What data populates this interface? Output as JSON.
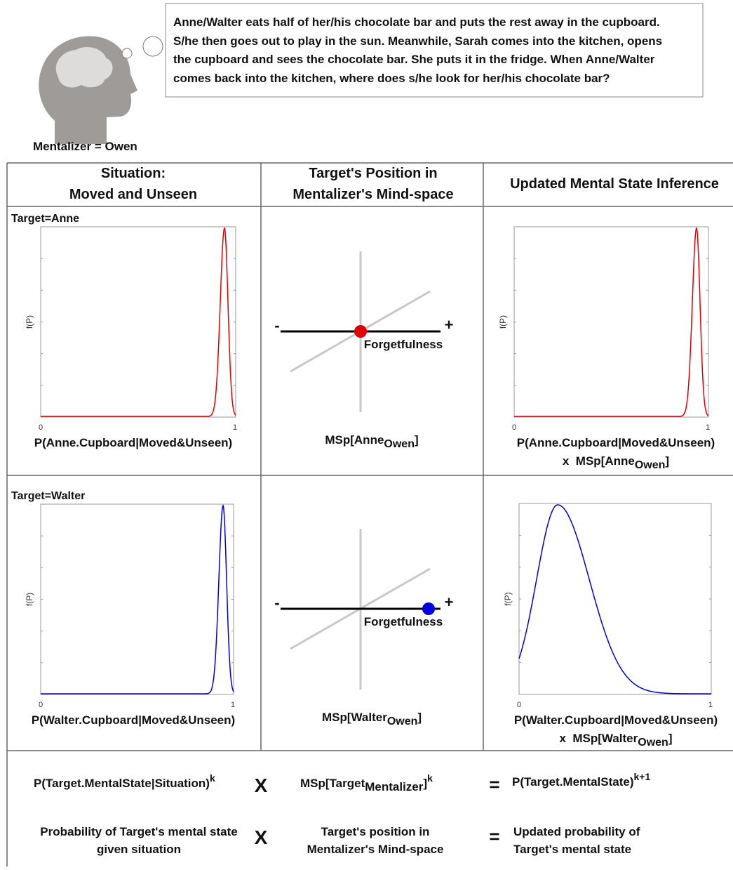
{
  "thought": {
    "story_lines": [
      "Anne/Walter eats half of her/his chocolate bar and puts the rest away in the cupboard.",
      "S/he then goes out to play in the sun. Meanwhile, Sarah comes into the kitchen, opens",
      "the cupboard and sees the chocolate bar. She puts it in the fridge. When Anne/Walter",
      "comes back into the kitchen, where does s/he look for her/his chocolate bar?"
    ],
    "mentalizer": "Mentalizer = Owen"
  },
  "table": {
    "headers": [
      [
        "Situation:",
        "Moved and Unseen"
      ],
      [
        "Target's Position in",
        "Mentalizer's Mind-space"
      ],
      [
        "Updated Mental State Inference"
      ]
    ],
    "rows": [
      {
        "target": "Target=Anne",
        "situation_plot": {
          "y_label": "f(P)",
          "x_ticks": [
            "0",
            "1"
          ],
          "x_label": "P(Anne.Cupboard|Moved&Unseen)"
        },
        "mind_space": {
          "minus": "-",
          "plus": "+",
          "axis": "Forgetfulness",
          "label": [
            "MSp[Anne",
            "Owen",
            "]"
          ]
        },
        "updated_plot": {
          "y_label": "f(P)",
          "x_ticks": [
            "0",
            "1"
          ],
          "x_label": "P(Anne.Cupboard|Moved&Unseen)",
          "x_label_2": [
            "x  MSp[Anne",
            "Owen",
            "]"
          ]
        }
      },
      {
        "target": "Target=Walter",
        "situation_plot": {
          "y_label": "f(P)",
          "x_ticks": [
            "0",
            "1"
          ],
          "x_label": "P(Walter.Cupboard|Moved&Unseen)"
        },
        "mind_space": {
          "minus": "-",
          "plus": "+",
          "axis": "Forgetfulness",
          "label": [
            "MSp[Walter",
            "Owen",
            "]"
          ]
        },
        "updated_plot": {
          "y_label": "f(P)",
          "x_ticks": [
            "0",
            "1"
          ],
          "x_label": "P(Walter.Cupboard|Moved&Unseen)",
          "x_label_2": [
            "x  MSp[Walter",
            "Owen",
            "]"
          ]
        }
      }
    ],
    "formula": {
      "term_1": [
        "P(Target.MentalState|Situation)",
        "k"
      ],
      "times": "X",
      "term_2": [
        "MSp[Target",
        "Mentalizer",
        "]",
        "k"
      ],
      "equals": "=",
      "term_3": [
        "P(Target.MentalState)",
        "k+1"
      ],
      "desc_1": [
        "Probability of Target's mental state",
        "given situation"
      ],
      "desc_times": "X",
      "desc_2": [
        "Target's position in",
        "Mentalizer's Mind-space"
      ],
      "desc_equals": "=",
      "desc_3": [
        "Updated probability of",
        "Target's mental state"
      ]
    }
  }
}
